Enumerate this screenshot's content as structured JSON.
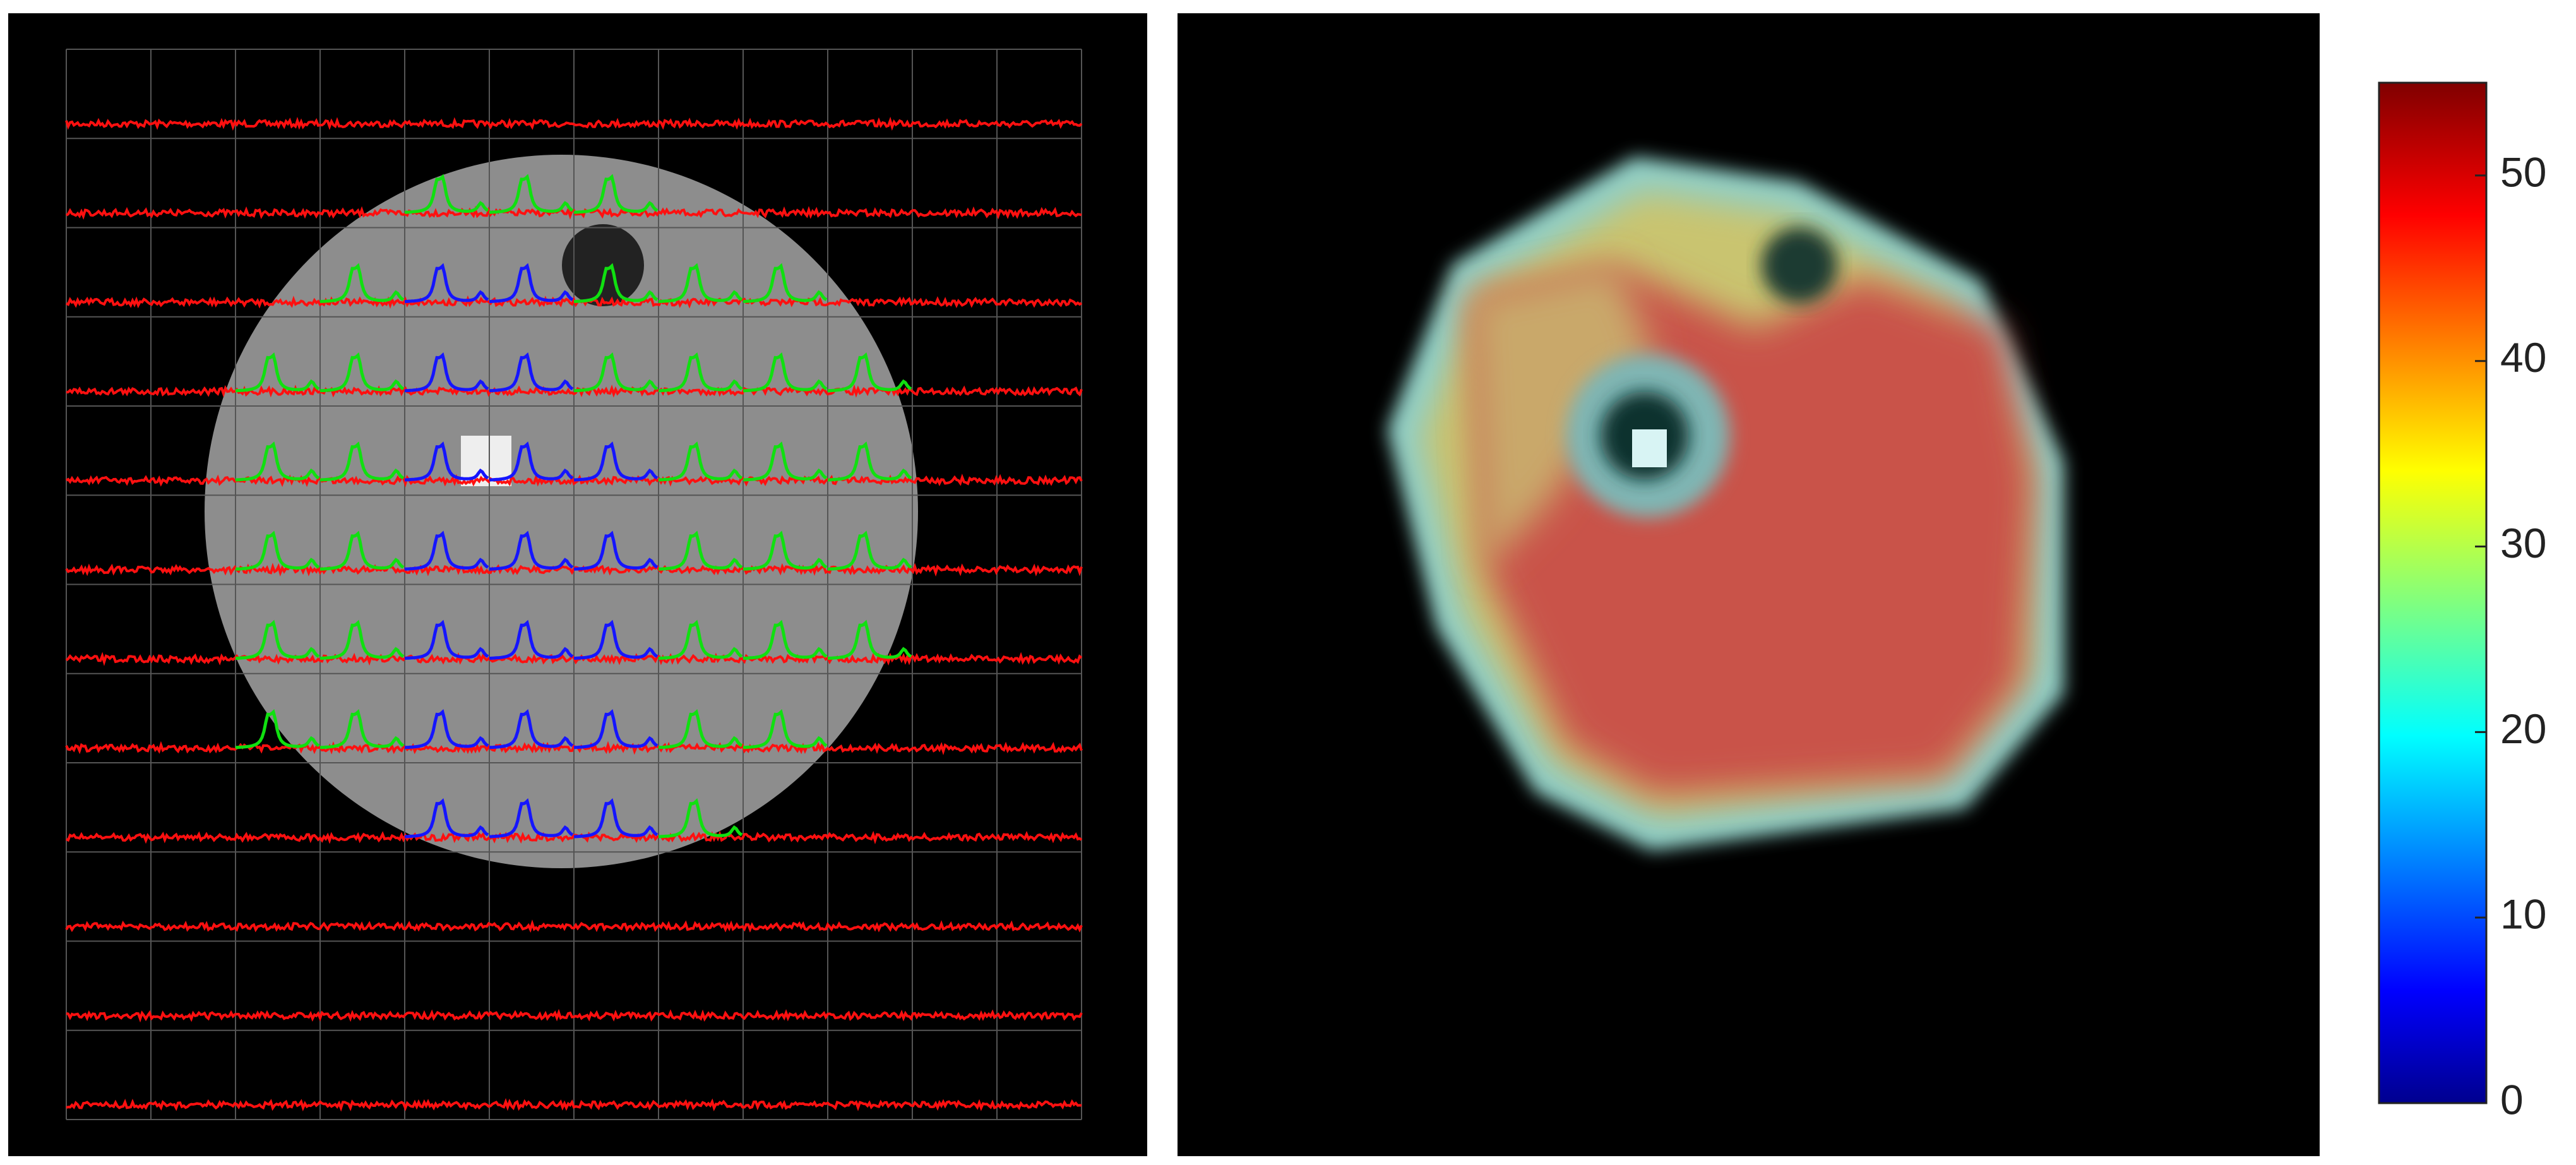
{
  "chart_data": {
    "type": "heatmap",
    "ylim": [
      0,
      55
    ],
    "yticks": [
      0,
      10,
      20,
      30,
      40,
      50
    ]
  }
}
